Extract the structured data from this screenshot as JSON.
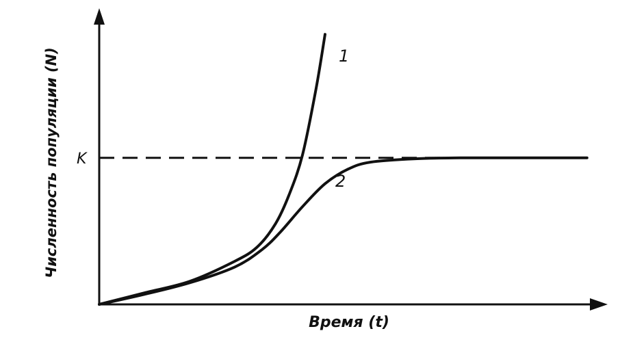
{
  "chart_data": {
    "type": "line",
    "title": "",
    "xlabel": "Время (t)",
    "ylabel": "Численность популяции (N)",
    "xlim": [
      0,
      10
    ],
    "ylim": [
      0,
      10
    ],
    "grid": false,
    "legend": "none",
    "reference_lines": [
      {
        "label": "K",
        "y": 5.1,
        "style": "dashed"
      }
    ],
    "series": [
      {
        "name": "1",
        "x": [
          0,
          1,
          2,
          3,
          3.5,
          3.9,
          4.2,
          4.5,
          4.8,
          5.0
        ],
        "y": [
          0,
          0.4,
          0.8,
          1.5,
          2.0,
          2.8,
          3.8,
          5.2,
          7.5,
          9.4
        ]
      },
      {
        "name": "2",
        "x": [
          0,
          1,
          2,
          3,
          3.6,
          4,
          4.5,
          5,
          5.5,
          6,
          7,
          8,
          9,
          10.8
        ],
        "y": [
          0,
          0.35,
          0.75,
          1.3,
          1.9,
          2.5,
          3.4,
          4.2,
          4.7,
          4.95,
          5.07,
          5.1,
          5.1,
          5.1
        ]
      }
    ]
  }
}
